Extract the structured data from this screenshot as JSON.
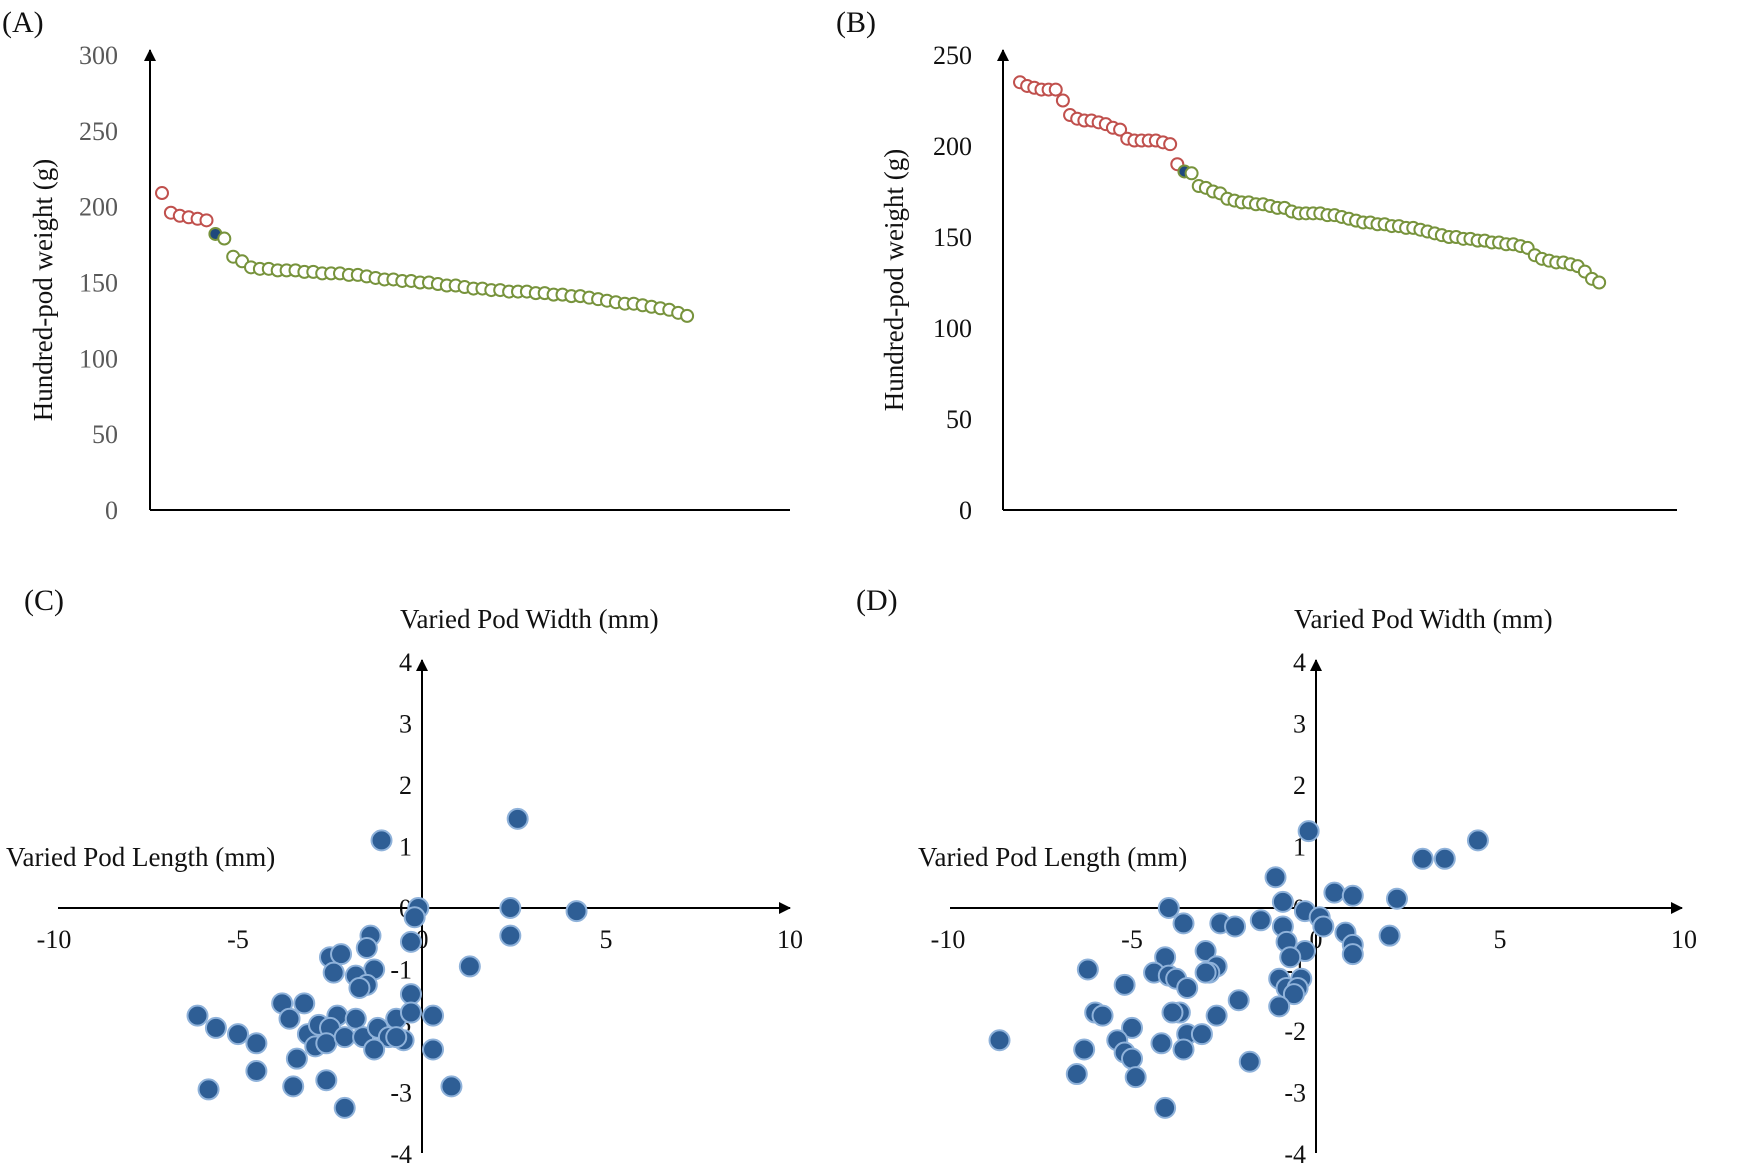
{
  "colors": {
    "high": "#c0504d",
    "low": "#77933c",
    "check": "#1f497d",
    "scatter_fill": "#2e5e95",
    "scatter_edge": "#8fb2da",
    "axis": "#000000",
    "tick_gray": "#595959"
  },
  "chart_data": [
    {
      "id": "A",
      "panel_label": "(A)",
      "type": "scatter",
      "ylabel": "Hundred-pod weight (g)",
      "ylim": [
        0,
        300
      ],
      "yticks": [
        "0",
        "50",
        "100",
        "150",
        "200",
        "250",
        "300"
      ],
      "grid": false,
      "series": [
        {
          "color_key": "high",
          "marker": "open-circle",
          "x": [
            1,
            2,
            3,
            4,
            5,
            6
          ],
          "y": [
            209,
            196,
            194,
            193,
            192,
            191
          ]
        },
        {
          "color_key": "check",
          "marker": "filled-circle",
          "x": [
            7
          ],
          "y": [
            182
          ]
        },
        {
          "color_key": "low",
          "marker": "open-circle",
          "x": [
            8,
            9,
            10,
            11,
            12,
            13,
            14,
            15,
            16,
            17,
            18,
            19,
            20,
            21,
            22,
            23,
            24,
            25,
            26,
            27,
            28,
            29,
            30,
            31,
            32,
            33,
            34,
            35,
            36,
            37,
            38,
            39,
            40,
            41,
            42,
            43,
            44,
            45,
            46,
            47,
            48,
            49,
            50,
            51,
            52,
            53,
            54,
            55,
            56,
            57,
            58,
            59,
            60
          ],
          "y": [
            179,
            167,
            164,
            160,
            159,
            159,
            158,
            158,
            158,
            157,
            157,
            156,
            156,
            156,
            155,
            155,
            154,
            153,
            152,
            152,
            151,
            151,
            150,
            150,
            149,
            148,
            148,
            147,
            146,
            146,
            145,
            145,
            144,
            144,
            144,
            143,
            143,
            142,
            142,
            141,
            141,
            140,
            139,
            138,
            137,
            136,
            136,
            135,
            134,
            133,
            132,
            130,
            128
          ]
        }
      ]
    },
    {
      "id": "B",
      "panel_label": "(B)",
      "type": "scatter",
      "ylabel": "Hundred-pod weight (g)",
      "ylim": [
        0,
        250
      ],
      "yticks": [
        "0",
        "50",
        "100",
        "150",
        "200",
        "250"
      ],
      "grid": false,
      "series": [
        {
          "color_key": "high",
          "marker": "open-circle",
          "x": [
            1,
            2,
            3,
            4,
            5,
            6,
            7,
            8,
            9,
            10,
            11,
            12,
            13,
            14,
            15,
            16,
            17,
            18,
            19,
            20,
            21,
            22,
            23
          ],
          "y": [
            235,
            233,
            232,
            231,
            231,
            231,
            225,
            217,
            215,
            214,
            214,
            213,
            212,
            210,
            209,
            204,
            203,
            203,
            203,
            203,
            202,
            201,
            190
          ]
        },
        {
          "color_key": "check",
          "marker": "filled-circle",
          "x": [
            24
          ],
          "y": [
            186
          ]
        },
        {
          "color_key": "low",
          "marker": "open-circle",
          "x": [
            25,
            26,
            27,
            28,
            29,
            30,
            31,
            32,
            33,
            34,
            35,
            36,
            37,
            38,
            39,
            40,
            41,
            42,
            43,
            44,
            45,
            46,
            47,
            48,
            49,
            50,
            51,
            52,
            53,
            54,
            55,
            56,
            57,
            58,
            59,
            60,
            61,
            62,
            63,
            64,
            65,
            66,
            67,
            68,
            69,
            70,
            71,
            72,
            73,
            74,
            75,
            76,
            77,
            78,
            79,
            80,
            81,
            82
          ],
          "y": [
            185,
            178,
            177,
            175,
            174,
            171,
            170,
            169,
            169,
            168,
            168,
            167,
            166,
            166,
            164,
            163,
            163,
            163,
            163,
            162,
            162,
            161,
            160,
            159,
            158,
            158,
            157,
            157,
            156,
            156,
            155,
            155,
            154,
            153,
            152,
            151,
            150,
            150,
            149,
            149,
            148,
            148,
            147,
            147,
            146,
            146,
            145,
            144,
            140,
            138,
            137,
            136,
            136,
            135,
            134,
            131,
            127,
            125
          ]
        }
      ]
    },
    {
      "id": "C",
      "panel_label": "(C)",
      "type": "scatter",
      "title": "Varied Pod Width (mm)",
      "xlabel": "Varied Pod Length (mm)",
      "xlim": [
        -10,
        10
      ],
      "ylim": [
        -4,
        4
      ],
      "xticks": [
        "-10",
        "-5",
        "0",
        "5",
        "10"
      ],
      "yticks": [
        "-4",
        "-3",
        "-2",
        "-1",
        "0",
        "1",
        "2",
        "3",
        "4"
      ],
      "grid": false,
      "points": [
        [
          -1.1,
          1.1
        ],
        [
          2.6,
          1.45
        ],
        [
          2.4,
          0.0
        ],
        [
          4.2,
          -0.05
        ],
        [
          -0.1,
          0.0
        ],
        [
          -0.2,
          -0.15
        ],
        [
          2.4,
          -0.45
        ],
        [
          -1.4,
          -0.45
        ],
        [
          -0.3,
          -0.55
        ],
        [
          -1.5,
          -0.65
        ],
        [
          -2.5,
          -0.8
        ],
        [
          -2.2,
          -0.75
        ],
        [
          1.3,
          -0.95
        ],
        [
          -1.3,
          -1.0
        ],
        [
          -2.4,
          -1.05
        ],
        [
          -1.8,
          -1.1
        ],
        [
          -1.5,
          -1.25
        ],
        [
          -1.7,
          -1.3
        ],
        [
          -0.3,
          -1.4
        ],
        [
          -3.8,
          -1.55
        ],
        [
          -3.2,
          -1.55
        ],
        [
          -6.1,
          -1.75
        ],
        [
          -5.6,
          -1.95
        ],
        [
          -3.6,
          -1.8
        ],
        [
          -2.3,
          -1.75
        ],
        [
          -1.8,
          -1.8
        ],
        [
          -0.7,
          -1.8
        ],
        [
          -0.3,
          -1.7
        ],
        [
          0.3,
          -1.75
        ],
        [
          -5.0,
          -2.05
        ],
        [
          -4.5,
          -2.2
        ],
        [
          -3.1,
          -2.05
        ],
        [
          -2.9,
          -2.25
        ],
        [
          -2.8,
          -1.9
        ],
        [
          -2.5,
          -1.95
        ],
        [
          -2.6,
          -2.2
        ],
        [
          -2.1,
          -2.1
        ],
        [
          -1.6,
          -2.1
        ],
        [
          -1.2,
          -1.95
        ],
        [
          -0.9,
          -2.1
        ],
        [
          -0.5,
          -2.15
        ],
        [
          -0.7,
          -2.1
        ],
        [
          -1.3,
          -2.3
        ],
        [
          0.3,
          -2.3
        ],
        [
          -3.4,
          -2.45
        ],
        [
          -4.5,
          -2.65
        ],
        [
          -5.8,
          -2.95
        ],
        [
          -3.5,
          -2.9
        ],
        [
          -2.6,
          -2.8
        ],
        [
          0.8,
          -2.9
        ],
        [
          -2.1,
          -3.25
        ]
      ]
    },
    {
      "id": "D",
      "panel_label": "(D)",
      "type": "scatter",
      "title": "Varied Pod Width (mm)",
      "xlabel": "Varied Pod Length (mm)",
      "xlim": [
        -10,
        10
      ],
      "ylim": [
        -4,
        4
      ],
      "xticks": [
        "-10",
        "-5",
        "0",
        "5",
        "10"
      ],
      "yticks": [
        "-4",
        "-3",
        "-2",
        "-1",
        "0",
        "1",
        "2",
        "3",
        "4"
      ],
      "grid": false,
      "points": [
        [
          -0.2,
          1.25
        ],
        [
          4.4,
          1.1
        ],
        [
          2.9,
          0.8
        ],
        [
          3.5,
          0.8
        ],
        [
          -1.1,
          0.5
        ],
        [
          0.5,
          0.25
        ],
        [
          1.0,
          0.2
        ],
        [
          2.2,
          0.15
        ],
        [
          -0.9,
          0.1
        ],
        [
          -4.0,
          0.0
        ],
        [
          -0.3,
          -0.05
        ],
        [
          0.1,
          -0.15
        ],
        [
          -1.5,
          -0.2
        ],
        [
          -0.9,
          -0.3
        ],
        [
          -3.6,
          -0.25
        ],
        [
          -2.6,
          -0.25
        ],
        [
          -2.2,
          -0.3
        ],
        [
          0.2,
          -0.3
        ],
        [
          0.8,
          -0.4
        ],
        [
          2.0,
          -0.45
        ],
        [
          -0.8,
          -0.55
        ],
        [
          1.0,
          -0.6
        ],
        [
          -3.0,
          -0.7
        ],
        [
          -0.3,
          -0.7
        ],
        [
          1.0,
          -0.75
        ],
        [
          -4.1,
          -0.8
        ],
        [
          -0.7,
          -0.8
        ],
        [
          -6.2,
          -1.0
        ],
        [
          -2.7,
          -0.95
        ],
        [
          -2.9,
          -1.05
        ],
        [
          -3.0,
          -1.05
        ],
        [
          -4.4,
          -1.05
        ],
        [
          -4.0,
          -1.1
        ],
        [
          -3.8,
          -1.15
        ],
        [
          -1.0,
          -1.15
        ],
        [
          -0.4,
          -1.15
        ],
        [
          -5.2,
          -1.25
        ],
        [
          -3.5,
          -1.3
        ],
        [
          -0.8,
          -1.3
        ],
        [
          -0.5,
          -1.3
        ],
        [
          -0.6,
          -1.4
        ],
        [
          -2.1,
          -1.5
        ],
        [
          -1.0,
          -1.6
        ],
        [
          -6.0,
          -1.7
        ],
        [
          -5.8,
          -1.75
        ],
        [
          -3.7,
          -1.7
        ],
        [
          -2.7,
          -1.75
        ],
        [
          -3.9,
          -1.7
        ],
        [
          -5.0,
          -1.95
        ],
        [
          -8.6,
          -2.15
        ],
        [
          -3.5,
          -2.05
        ],
        [
          -3.1,
          -2.05
        ],
        [
          -5.4,
          -2.15
        ],
        [
          -4.2,
          -2.2
        ],
        [
          -6.3,
          -2.3
        ],
        [
          -5.2,
          -2.35
        ],
        [
          -3.6,
          -2.3
        ],
        [
          -5.0,
          -2.45
        ],
        [
          -1.8,
          -2.5
        ],
        [
          -6.5,
          -2.7
        ],
        [
          -4.9,
          -2.75
        ],
        [
          -4.1,
          -3.25
        ]
      ]
    }
  ]
}
